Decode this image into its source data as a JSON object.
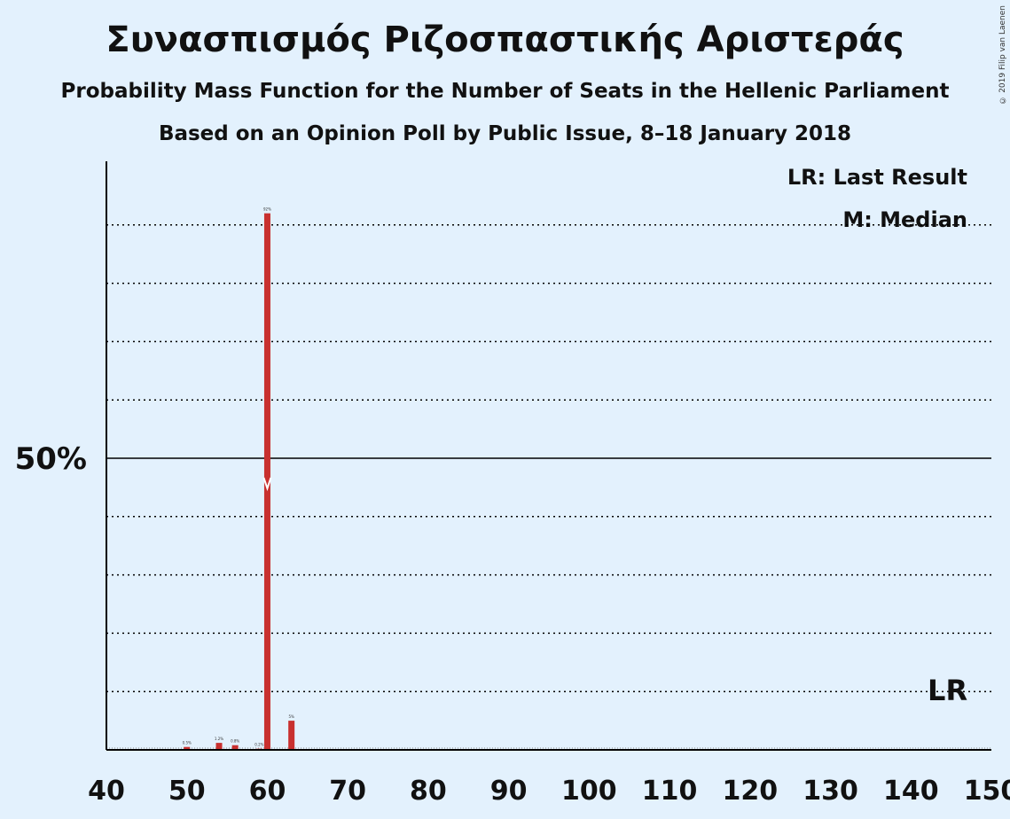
{
  "title": "Συνασπισμός Ριζοσπαστικής Αριστεράς",
  "subtitle": "Probability Mass Function for the Number of Seats in the Hellenic Parliament",
  "source": "Based on an Opinion Poll by Public Issue, 8–18 January 2018",
  "copyright": "© 2019 Filip van Laenen",
  "legend": {
    "last_result": "LR: Last Result",
    "median": "M: Median"
  },
  "colors": {
    "background": "#e3f1fd",
    "bar": "#c8302f",
    "axis": "#000000",
    "text": "#111111"
  },
  "chart_data": {
    "type": "bar",
    "title": "Συνασπισμός Ριζοσπαστικής Αριστεράς",
    "xlabel": "",
    "ylabel": "",
    "xlim": [
      40,
      150
    ],
    "ylim": [
      0,
      100
    ],
    "x_ticks": [
      40,
      50,
      60,
      70,
      80,
      90,
      100,
      110,
      120,
      130,
      140,
      150
    ],
    "y_tick_labels": [
      {
        "value": 50,
        "label": "50%"
      }
    ],
    "gridlines": [
      10,
      20,
      30,
      40,
      50,
      60,
      70,
      80,
      90
    ],
    "grid": true,
    "median": 60,
    "median_label": "M",
    "last_result": 144,
    "last_result_label": "LR",
    "series": [
      {
        "x": [
          50,
          54,
          56,
          59,
          60,
          63
        ],
        "values": [
          0.5,
          1.2,
          0.8,
          0.2,
          92,
          5
        ],
        "labels": [
          "0.5%",
          "1.2%",
          "0.8%",
          "0.2%",
          "92%",
          "5%"
        ]
      }
    ]
  }
}
